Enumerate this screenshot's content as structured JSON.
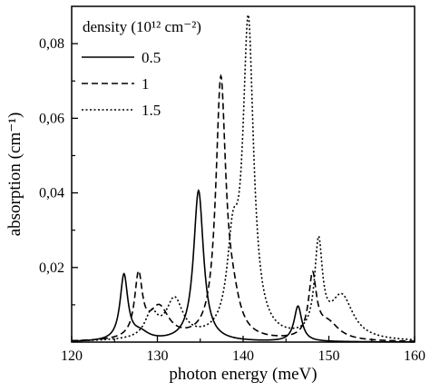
{
  "chart_data": {
    "type": "line",
    "xlabel": "photon energy (meV)",
    "ylabel": "absorption (cm⁻¹)",
    "xlim": [
      120,
      160
    ],
    "ylim": [
      0,
      0.09
    ],
    "x_ticks": [
      120,
      130,
      140,
      150,
      160
    ],
    "y_ticks": [
      0.02,
      0.04,
      0.06,
      0.08
    ],
    "y_tick_labels": [
      "0,02",
      "0,04",
      "0,06",
      "0,08"
    ],
    "grid": false,
    "legend": {
      "title": "density (10¹² cm⁻²)",
      "placement": "top-left"
    },
    "series": [
      {
        "name": "0.5",
        "style": "solid",
        "peaks": [
          {
            "x": 126.1,
            "y": 0.0175,
            "width": 0.55
          },
          {
            "x": 128.0,
            "y": 0.002,
            "width": 1.2
          },
          {
            "x": 134.8,
            "y": 0.0405,
            "width": 0.7
          },
          {
            "x": 146.4,
            "y": 0.0095,
            "width": 0.55
          }
        ]
      },
      {
        "name": "1",
        "style": "dashed",
        "peaks": [
          {
            "x": 127.8,
            "y": 0.0165,
            "width": 0.55
          },
          {
            "x": 130.2,
            "y": 0.0085,
            "width": 1.4
          },
          {
            "x": 137.4,
            "y": 0.0685,
            "width": 0.7
          },
          {
            "x": 138.8,
            "y": 0.007,
            "width": 1.0
          },
          {
            "x": 148.1,
            "y": 0.0165,
            "width": 0.55
          },
          {
            "x": 149.9,
            "y": 0.0045,
            "width": 1.6
          }
        ]
      },
      {
        "name": "1.5",
        "style": "dotted",
        "peaks": [
          {
            "x": 129.3,
            "y": 0.0065,
            "width": 0.9
          },
          {
            "x": 132.0,
            "y": 0.0105,
            "width": 1.2
          },
          {
            "x": 138.8,
            "y": 0.022,
            "width": 0.8
          },
          {
            "x": 140.6,
            "y": 0.0835,
            "width": 0.75
          },
          {
            "x": 148.8,
            "y": 0.0245,
            "width": 0.55
          },
          {
            "x": 151.5,
            "y": 0.0115,
            "width": 1.6
          }
        ]
      }
    ]
  }
}
